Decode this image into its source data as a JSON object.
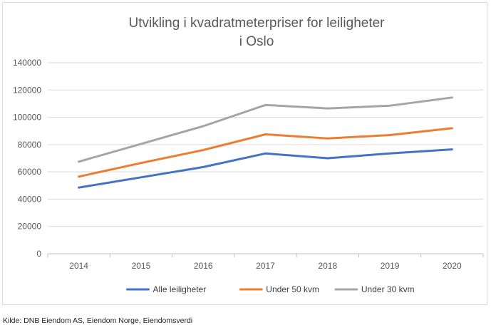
{
  "chart_data": {
    "type": "line",
    "title": [
      "Utvikling i kvadratmeterpriser for leiligheter",
      "i Oslo"
    ],
    "xlabel": "",
    "ylabel": "",
    "categories": [
      "2014",
      "2015",
      "2016",
      "2017",
      "2018",
      "2019",
      "2020"
    ],
    "ylim": [
      0,
      140000
    ],
    "yticks": [
      0,
      20000,
      40000,
      60000,
      80000,
      100000,
      120000,
      140000
    ],
    "grid": true,
    "legend_position": "bottom",
    "series": [
      {
        "name": "Alle leiligheter",
        "color": "#4472c4",
        "values": [
          48500,
          56000,
          63500,
          73500,
          70000,
          73500,
          76500
        ]
      },
      {
        "name": "Under 50 kvm",
        "color": "#ed7d31",
        "values": [
          56500,
          66500,
          76000,
          87500,
          84500,
          87000,
          92000
        ]
      },
      {
        "name": "Under 30 kvm",
        "color": "#a5a5a5",
        "values": [
          67500,
          80500,
          93500,
          109000,
          106500,
          108500,
          114500
        ]
      }
    ]
  },
  "source_note": "Kilde: DNB Eiendom AS, Eiendom Norge, Eiendomsverdi"
}
